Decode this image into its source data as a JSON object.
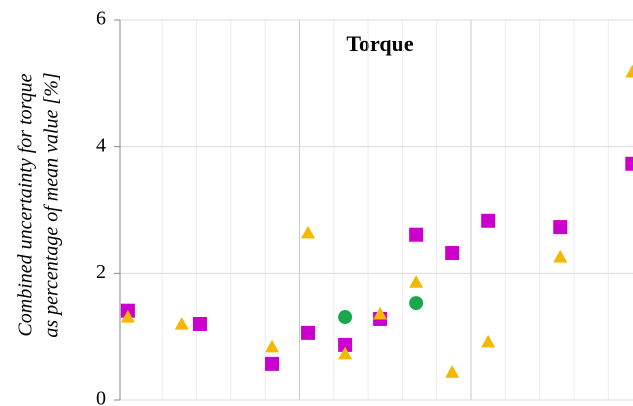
{
  "chart_data": {
    "type": "scatter",
    "title": "Torque",
    "ylabel": [
      "Combined uncertainty for torque",
      "as percentage of mean value [%]"
    ],
    "xlim": [
      -0.23,
      14.72
    ],
    "xticks": [
      1,
      2,
      3,
      4,
      5,
      6,
      7,
      8,
      9,
      10,
      11,
      12,
      13,
      14
    ],
    "ylim": [
      0,
      6
    ],
    "yticks": [
      0,
      2,
      4,
      6
    ],
    "grid": true,
    "series": [
      {
        "color": "#cc00cc",
        "marker": "square",
        "x": [
          0,
          2.1,
          4.2,
          5.25,
          6.33,
          7.35,
          8.4,
          9.45,
          10.5,
          12.6,
          14.7
        ],
        "values": [
          1.41,
          1.2,
          0.57,
          1.06,
          0.87,
          1.28,
          2.61,
          2.32,
          2.83,
          2.73,
          3.73
        ]
      },
      {
        "color": "#f5b800",
        "marker": "triangle",
        "x": [
          0,
          1.57,
          4.2,
          5.25,
          6.33,
          7.35,
          8.4,
          9.45,
          10.5,
          12.6,
          14.7
        ],
        "values": [
          1.31,
          1.2,
          0.84,
          2.64,
          0.73,
          1.36,
          1.86,
          0.44,
          0.92,
          2.26,
          5.18
        ]
      },
      {
        "color": "#1aa84f",
        "marker": "circle",
        "x": [
          6.33,
          8.4
        ],
        "values": [
          1.31,
          1.53
        ]
      }
    ]
  }
}
